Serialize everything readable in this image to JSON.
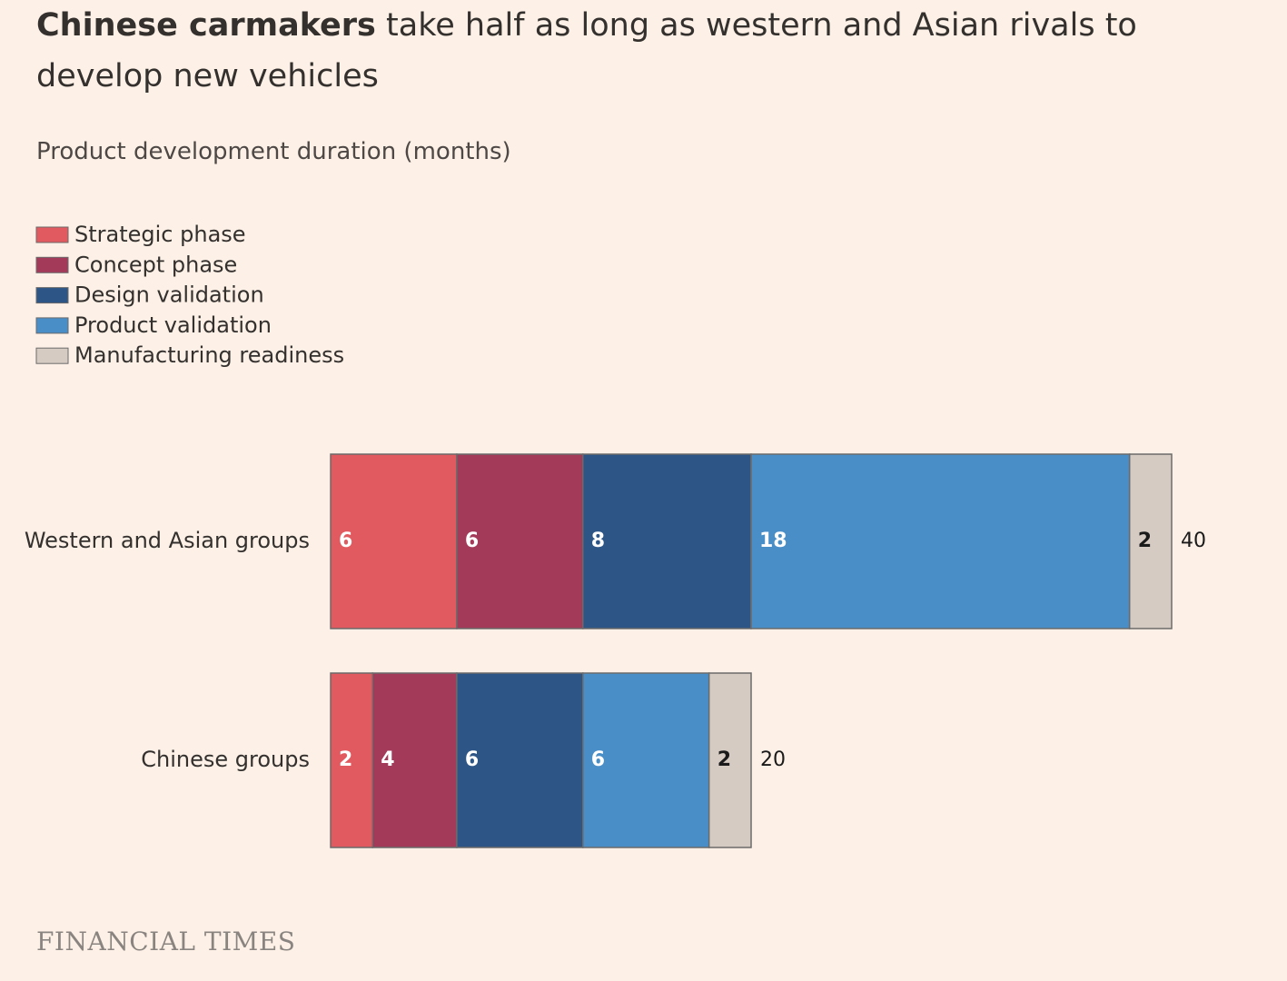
{
  "chart_data": {
    "type": "stacked-bar",
    "title_emphasis": "Chinese carmakers",
    "title": "take half as long as western and Asian rivals to develop new vehicles",
    "subtitle": "Product development duration (months)",
    "categories": [
      "Western and Asian groups",
      "Chinese groups"
    ],
    "series": [
      {
        "name": "Strategic phase",
        "color": "#e05a5f",
        "values": [
          6,
          2
        ]
      },
      {
        "name": "Concept phase",
        "color": "#a33a5a",
        "values": [
          6,
          4
        ]
      },
      {
        "name": "Design validation",
        "color": "#2d5586",
        "values": [
          8,
          6
        ]
      },
      {
        "name": "Product validation",
        "color": "#4a8ec8",
        "values": [
          18,
          6
        ]
      },
      {
        "name": "Manufacturing readiness",
        "color": "#d6cbc3",
        "values": [
          2,
          2
        ]
      }
    ],
    "totals": [
      40,
      20
    ],
    "xlim": [
      0,
      40
    ],
    "source": "FINANCIAL TIMES"
  }
}
